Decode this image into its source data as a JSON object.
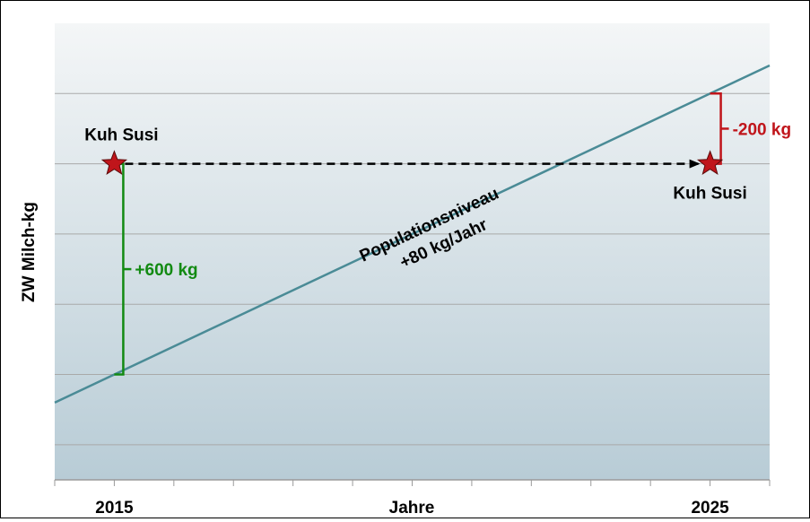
{
  "chart_data": {
    "type": "line",
    "title": "",
    "xlabel": "Jahre",
    "ylabel": "ZW Milch-kg",
    "x_ticks": [
      {
        "value": 2015,
        "label": "2015"
      },
      {
        "value": 2025,
        "label": "2025"
      }
    ],
    "xlim": [
      2014,
      2026
    ],
    "ylim": [
      -300,
      1000
    ],
    "grid": true,
    "series": [
      {
        "name": "Populationsniveau",
        "x": [
          2014,
          2026
        ],
        "y": [
          -80,
          880
        ],
        "color": "#4a8b96"
      }
    ],
    "cow": {
      "name": "Kuh Susi",
      "year_start": 2015,
      "year_end": 2025,
      "value": 600,
      "color": "#c0151b"
    },
    "annotations": {
      "line_label_1": "Populationsniveau",
      "line_label_2": "+80 kg/Jahr",
      "label_start": "Kuh Susi",
      "label_end": "Kuh Susi",
      "diff_start": "+600 kg",
      "diff_end": "-200 kg",
      "diff_start_color": "#128a12",
      "diff_end_color": "#c0151b"
    },
    "colors": {
      "plot_background_top": "#f4f6f7",
      "plot_background_bottom": "#b8ccd6",
      "grid": "#a9a9a9",
      "arrow": "#000000"
    }
  }
}
